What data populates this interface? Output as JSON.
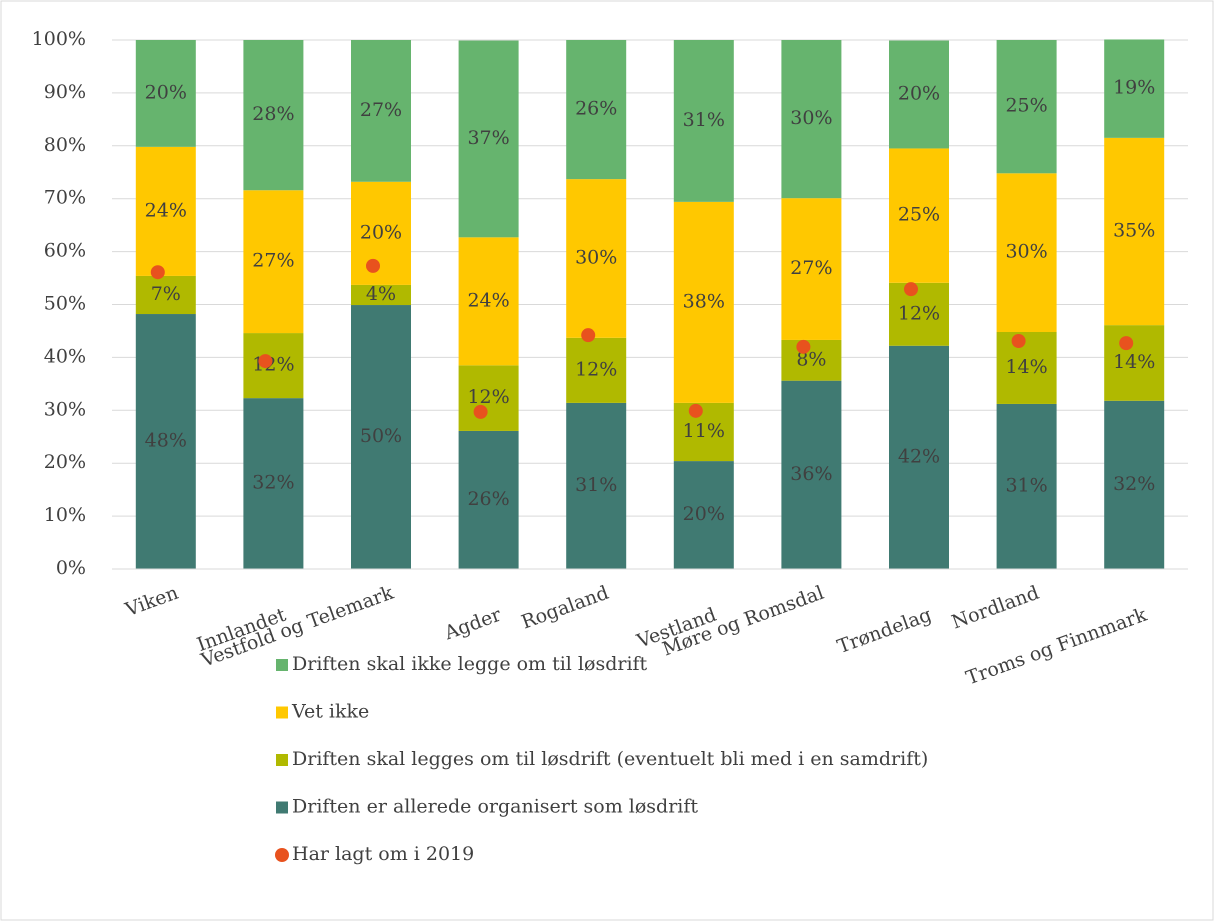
{
  "chart_data": {
    "type": "bar",
    "stacked": true,
    "grid": true,
    "categories": [
      "Viken",
      "Innlandet",
      "Vestfold og Telemark",
      "Agder",
      "Rogaland",
      "Vestland",
      "Møre og Romsdal",
      "Trøndelag",
      "Nordland",
      "Troms og Finnmark"
    ],
    "ylim": [
      0,
      100
    ],
    "yticks": [
      {
        "value": 0,
        "label": "0%"
      },
      {
        "value": 10,
        "label": "10%"
      },
      {
        "value": 20,
        "label": "20%"
      },
      {
        "value": 30,
        "label": "30%"
      },
      {
        "value": 40,
        "label": "40%"
      },
      {
        "value": 50,
        "label": "50%"
      },
      {
        "value": 60,
        "label": "60%"
      },
      {
        "value": 70,
        "label": "70%"
      },
      {
        "value": 80,
        "label": "80%"
      },
      {
        "value": 90,
        "label": "90%"
      },
      {
        "value": 100,
        "label": "100%"
      }
    ],
    "series": [
      {
        "name": "Driften er allerede organisert som løsdrift",
        "color": "#407a72",
        "values": [
          48.2,
          32.3,
          49.9,
          26.1,
          31.4,
          20.4,
          35.6,
          42.2,
          31.2,
          31.8
        ],
        "value_labels": [
          "48%",
          "32%",
          "50%",
          "26%",
          "31%",
          "20%",
          "36%",
          "42%",
          "31%",
          "32%"
        ]
      },
      {
        "name": "Driften skal legges om til løsdrift (eventuelt bli med i en samdrift)",
        "color": "#b0b900",
        "values": [
          7.2,
          12.3,
          3.8,
          12.4,
          12.3,
          11.0,
          7.7,
          11.9,
          13.6,
          14.3
        ],
        "value_labels": [
          "7%",
          "12%",
          "4%",
          "12%",
          "12%",
          "11%",
          "8%",
          "12%",
          "14%",
          "14%"
        ]
      },
      {
        "name": "Vet ikke",
        "color": "#ffc800",
        "values": [
          24.4,
          27.0,
          19.5,
          24.2,
          30.0,
          38.0,
          26.8,
          25.4,
          30.0,
          35.4
        ],
        "value_labels": [
          "24%",
          "27%",
          "20%",
          "24%",
          "30%",
          "38%",
          "27%",
          "25%",
          "30%",
          "35%"
        ]
      },
      {
        "name": "Driften skal ikke legge om til løsdrift",
        "color": "#66b46e",
        "values": [
          20.2,
          28.4,
          26.8,
          37.2,
          26.3,
          30.6,
          29.9,
          20.4,
          25.2,
          18.6
        ],
        "value_labels": [
          "20%",
          "28%",
          "27%",
          "37%",
          "26%",
          "31%",
          "30%",
          "20%",
          "25%",
          "19%"
        ]
      },
      {
        "name": "Har lagt om i 2019",
        "type": "scatter",
        "color": "#e8521e",
        "values": [
          56.1,
          39.3,
          57.3,
          29.7,
          44.2,
          29.9,
          42.0,
          52.9,
          43.1,
          42.7
        ]
      }
    ]
  }
}
